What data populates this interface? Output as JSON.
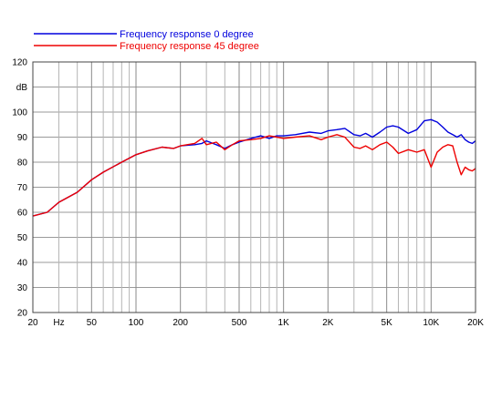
{
  "chart_data": {
    "type": "line",
    "title": "",
    "xlabel": "",
    "ylabel": "dB",
    "x_scale": "log",
    "xlim": [
      20,
      20000
    ],
    "ylim": [
      20,
      120
    ],
    "grid": true,
    "legend_position": "top-left",
    "x_tick_labels": [
      {
        "value": 20,
        "label": "20"
      },
      {
        "value": 30,
        "label": "Hz"
      },
      {
        "value": 50,
        "label": "50"
      },
      {
        "value": 100,
        "label": "100"
      },
      {
        "value": 200,
        "label": "200"
      },
      {
        "value": 500,
        "label": "500"
      },
      {
        "value": 1000,
        "label": "1K"
      },
      {
        "value": 2000,
        "label": "2K"
      },
      {
        "value": 5000,
        "label": "5K"
      },
      {
        "value": 10000,
        "label": "10K"
      },
      {
        "value": 20000,
        "label": "20K"
      }
    ],
    "y_tick_labels": [
      {
        "value": 120,
        "label": "120"
      },
      {
        "value": 110,
        "label": "dB"
      },
      {
        "value": 100,
        "label": "100"
      },
      {
        "value": 90,
        "label": "90"
      },
      {
        "value": 80,
        "label": "80"
      },
      {
        "value": 70,
        "label": "70"
      },
      {
        "value": 60,
        "label": "60"
      },
      {
        "value": 50,
        "label": "50"
      },
      {
        "value": 40,
        "label": "40"
      },
      {
        "value": 30,
        "label": "30"
      },
      {
        "value": 20,
        "label": "20"
      }
    ],
    "series": [
      {
        "name": "Frequency response 0 degree",
        "color": "#0000dd",
        "x": [
          20,
          25,
          30,
          40,
          50,
          60,
          80,
          100,
          120,
          150,
          180,
          200,
          250,
          280,
          300,
          350,
          400,
          450,
          500,
          600,
          700,
          800,
          900,
          1000,
          1200,
          1500,
          1800,
          2000,
          2300,
          2600,
          3000,
          3300,
          3600,
          4000,
          4500,
          5000,
          5500,
          6000,
          7000,
          8000,
          9000,
          10000,
          11000,
          12000,
          13000,
          14000,
          15000,
          16000,
          17000,
          18000,
          19000,
          20000
        ],
        "y": [
          58.5,
          60,
          64,
          68,
          73,
          76,
          80,
          83,
          84.5,
          86,
          85.5,
          86.5,
          87,
          87.5,
          88.5,
          87,
          85.5,
          87,
          88,
          89.5,
          90.5,
          89.5,
          90.5,
          90.5,
          91,
          92,
          91.5,
          92.5,
          93,
          93.5,
          91,
          90.5,
          91.5,
          90,
          92,
          94,
          94.5,
          94,
          91.5,
          93,
          96.5,
          97,
          96,
          94,
          92,
          91,
          90,
          91,
          89,
          88,
          87.5,
          88.5
        ]
      },
      {
        "name": "Frequency response 45 degree",
        "color": "#ee0000",
        "x": [
          20,
          25,
          30,
          40,
          50,
          60,
          80,
          100,
          120,
          150,
          180,
          200,
          250,
          280,
          300,
          350,
          400,
          450,
          500,
          600,
          700,
          800,
          900,
          1000,
          1200,
          1500,
          1800,
          2000,
          2300,
          2600,
          3000,
          3300,
          3600,
          4000,
          4500,
          5000,
          5500,
          6000,
          7000,
          8000,
          9000,
          10000,
          11000,
          12000,
          13000,
          14000,
          15000,
          16000,
          17000,
          18000,
          19000,
          20000
        ],
        "y": [
          58.5,
          60,
          64,
          68,
          73,
          76,
          80,
          83,
          84.5,
          86,
          85.5,
          86.5,
          87.5,
          89.5,
          87,
          88,
          85,
          87,
          88.5,
          89,
          89.5,
          90.5,
          90,
          89.5,
          90,
          90.5,
          89,
          90,
          91,
          90,
          86,
          85.5,
          86.5,
          85,
          87,
          88,
          86,
          83.5,
          85,
          84,
          85,
          78,
          84,
          86,
          87,
          86.5,
          80,
          75,
          78,
          77,
          76.5,
          77.5
        ]
      }
    ]
  }
}
